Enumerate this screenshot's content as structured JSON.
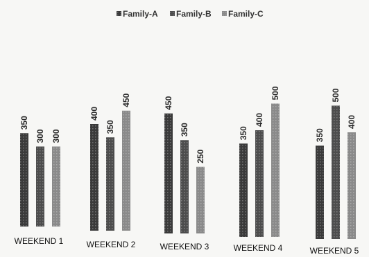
{
  "chart_data": {
    "type": "bar",
    "categories": [
      "WEEKEND 1",
      "WEEKEND 2",
      "WEEKEND 3",
      "WEEKEND 4",
      "WEEKEND 5"
    ],
    "series": [
      {
        "name": "Family-A",
        "values": [
          350,
          400,
          450,
          350,
          350
        ],
        "color": "#3a3a3a"
      },
      {
        "name": "Family-B",
        "values": [
          300,
          350,
          350,
          400,
          500
        ],
        "color": "#4d4d4d"
      },
      {
        "name": "Family-C",
        "values": [
          300,
          450,
          250,
          500,
          400
        ],
        "color": "#8a8a8a"
      }
    ],
    "legend_position": "top-center",
    "value_labels": "vertical-above-bars",
    "grid": false,
    "ylim": [
      0,
      500
    ]
  }
}
